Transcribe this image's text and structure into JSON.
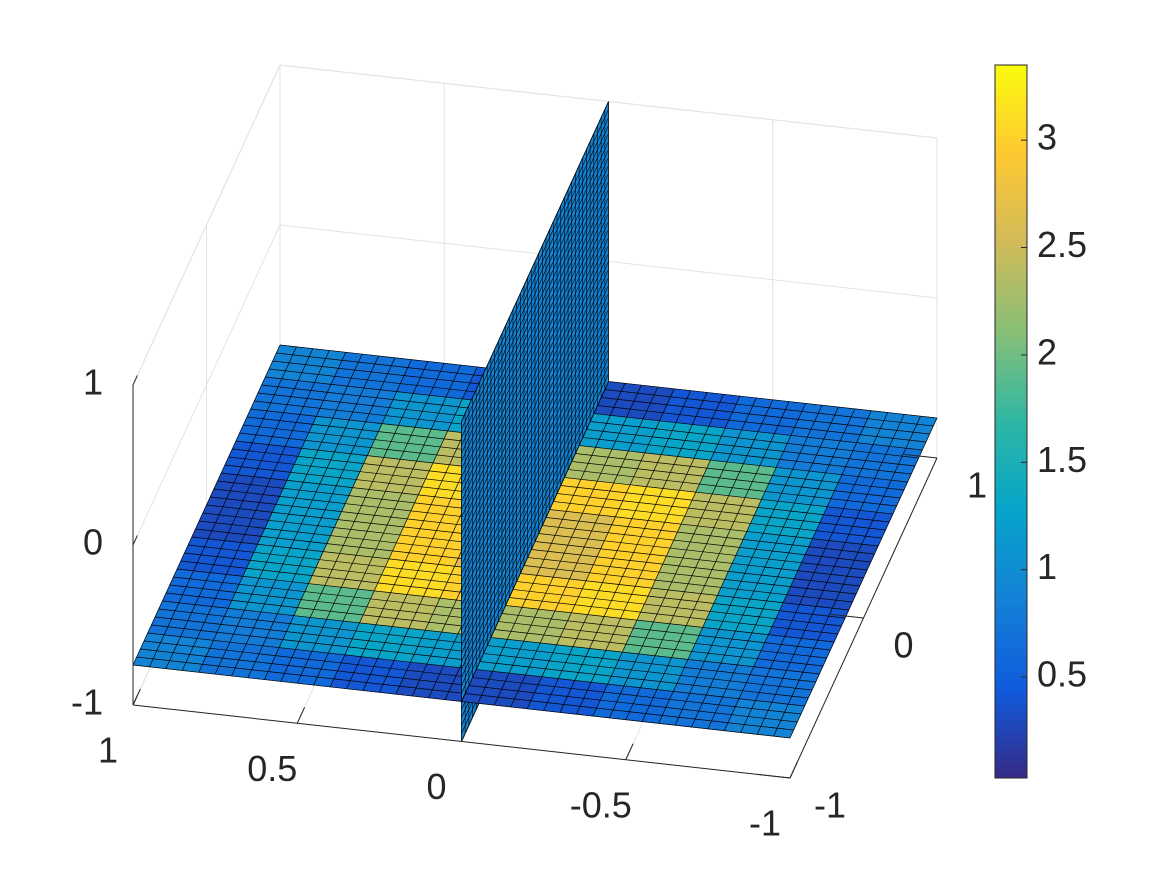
{
  "chart_data": {
    "type": "slice3d",
    "x": [
      -0.9,
      -0.7,
      -0.5,
      -0.3,
      -0.1,
      0.1,
      0.3,
      0.5,
      0.7,
      0.9
    ],
    "y": [
      -0.9,
      -0.7,
      -0.5,
      -0.3,
      -0.1,
      0.1,
      0.3,
      0.5,
      0.7,
      0.9
    ],
    "z_level": -0.75,
    "values": [
      [
        0.9,
        0.7,
        0.6,
        0.4,
        0.3,
        0.3,
        0.4,
        0.6,
        0.7,
        0.9
      ],
      [
        0.7,
        0.8,
        1.1,
        1.3,
        1.2,
        1.2,
        1.3,
        1.1,
        0.8,
        0.7
      ],
      [
        0.6,
        1.1,
        1.9,
        2.4,
        2.3,
        2.3,
        2.4,
        1.9,
        1.1,
        0.6
      ],
      [
        0.4,
        1.3,
        2.4,
        3.1,
        3.0,
        3.0,
        3.1,
        2.4,
        1.3,
        0.4
      ],
      [
        0.3,
        1.2,
        2.3,
        3.0,
        2.6,
        2.6,
        3.0,
        2.3,
        1.2,
        0.3
      ],
      [
        0.3,
        1.2,
        2.3,
        3.0,
        2.6,
        2.6,
        3.0,
        2.3,
        1.2,
        0.3
      ],
      [
        0.4,
        1.3,
        2.4,
        3.1,
        3.0,
        3.0,
        3.1,
        2.4,
        1.3,
        0.4
      ],
      [
        0.6,
        1.1,
        1.9,
        2.4,
        2.3,
        2.3,
        2.4,
        1.9,
        1.1,
        0.6
      ],
      [
        0.7,
        0.8,
        1.1,
        1.3,
        1.2,
        1.2,
        1.3,
        1.1,
        0.8,
        0.7
      ],
      [
        0.9,
        0.7,
        0.6,
        0.4,
        0.3,
        0.3,
        0.4,
        0.6,
        0.7,
        0.9
      ]
    ],
    "vertical_slice": {
      "x": 0,
      "value": 0.9
    },
    "xlim": [
      -1,
      1
    ],
    "ylim": [
      -1,
      1
    ],
    "zlim": [
      -1,
      1
    ],
    "xticks": [
      -1,
      -0.5,
      0,
      0.5,
      1
    ],
    "yticks": [
      -1,
      0,
      1
    ],
    "zticks": [
      -1,
      0,
      1
    ],
    "clim": [
      0.03,
      3.35
    ],
    "cticks": [
      0.5,
      1,
      1.5,
      2,
      2.5,
      3
    ],
    "colormap": [
      "#352a87",
      "#0f5cdd",
      "#1481d6",
      "#06a4ca",
      "#2eb7a4",
      "#87bf77",
      "#d1bb59",
      "#fec832",
      "#f9fb0e"
    ],
    "grid": true
  }
}
